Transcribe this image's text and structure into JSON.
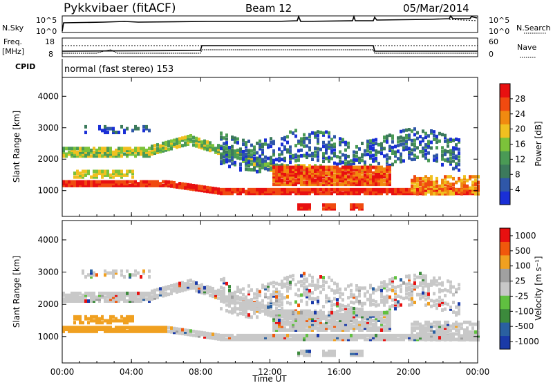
{
  "header": {
    "station": "Pykkvibaer (fitACF)",
    "beam": "Beam 12",
    "date": "05/Mar/2014"
  },
  "top_panels": {
    "nsky_label": "N.Sky",
    "nsearch_label": "N.Search",
    "freq_label_1": "Freq.",
    "freq_label_2": "[MHz]",
    "nave_label": "Nave",
    "cpid_label": "CPID",
    "cpid_text": "normal (fast stereo) 153",
    "noise_ticks": [
      "10^5",
      "10^0"
    ],
    "noise_right_ticks": [
      "10^5",
      "10^0"
    ],
    "freq_ticks": [
      "18",
      "8"
    ],
    "nave_ticks": [
      "60",
      "0"
    ]
  },
  "colors": {
    "power_scale": [
      "#1a2fd6",
      "#2f57a8",
      "#3c7a5c",
      "#4a9a55",
      "#7cc23a",
      "#f0c020",
      "#f08a10",
      "#f04a10",
      "#e81010"
    ],
    "velocity_scale": [
      "#e81010",
      "#f0580c",
      "#f0a020",
      "#a0a0a0",
      "#c8c8c8",
      "#60c040",
      "#3c8a3c",
      "#2a60a0",
      "#1a3aa8"
    ]
  },
  "chart_data": [
    {
      "type": "heatmap",
      "title": "",
      "ylabel": "Slant Range [km]",
      "xlabel": "",
      "ylim": [
        180,
        4600
      ],
      "yticks": [
        "1000",
        "2000",
        "3000",
        "4000"
      ],
      "xticks": [
        "00:00",
        "04:00",
        "08:00",
        "12:00",
        "16:00",
        "20:00",
        "00:00"
      ],
      "colorbar": {
        "label": "Power [dB]",
        "ticks": [
          "4",
          "8",
          "12",
          "16",
          "20",
          "24",
          "28"
        ]
      }
    },
    {
      "type": "heatmap",
      "title": "",
      "ylabel": "Slant Range [km]",
      "xlabel": "Time UT",
      "ylim": [
        180,
        4600
      ],
      "yticks": [
        "1000",
        "2000",
        "3000",
        "4000"
      ],
      "xticks": [
        "00:00",
        "04:00",
        "08:00",
        "12:00",
        "16:00",
        "20:00",
        "00:00"
      ],
      "colorbar": {
        "label": "Velocity [m s⁻¹]",
        "ticks": [
          "1000",
          "500",
          "100",
          "25",
          "-25",
          "-100",
          "-500",
          "-1000"
        ]
      }
    }
  ]
}
